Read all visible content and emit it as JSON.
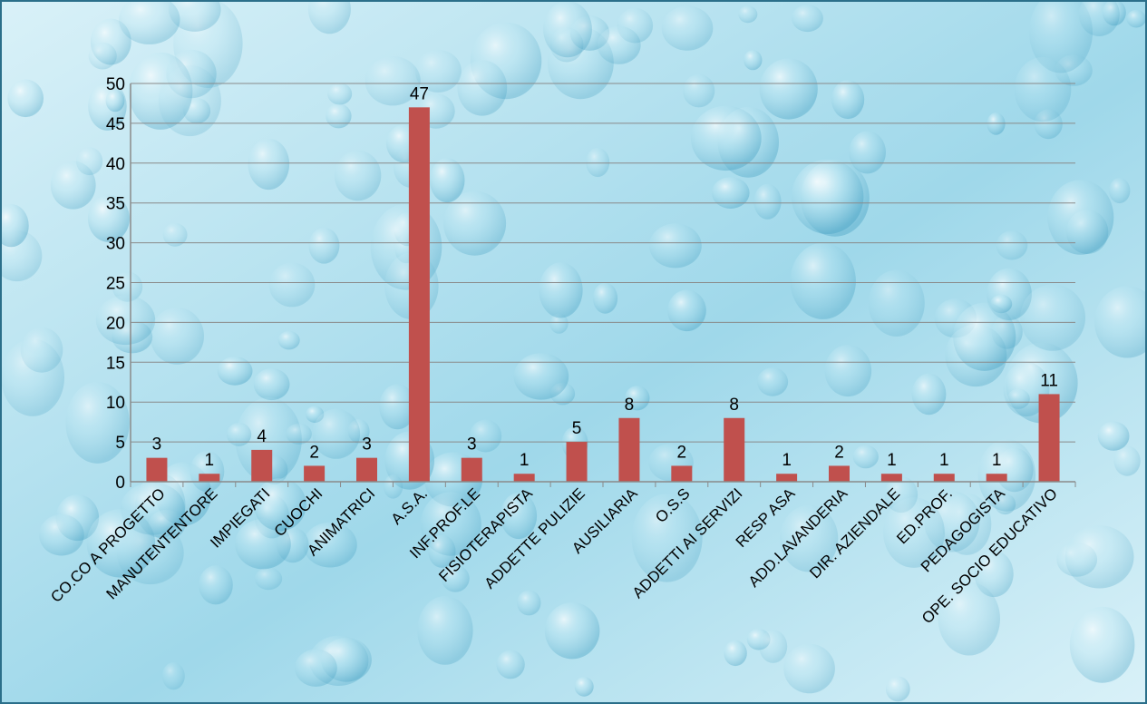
{
  "chart_data": {
    "type": "bar",
    "title": "",
    "xlabel": "",
    "ylabel": "",
    "ylim": [
      0,
      50
    ],
    "yticks": [
      0,
      5,
      10,
      15,
      20,
      25,
      30,
      35,
      40,
      45,
      50
    ],
    "grid": true,
    "legend": "none",
    "data_labels": true,
    "categories": [
      "CO.CO A PROGETTO",
      "MANUTENTENTORE",
      "IMPIEGATI",
      "CUOCHI",
      "ANIMATRICI",
      "A.S.A.",
      "INF.PROF.LE",
      "FISIOTERAPISTA",
      "ADDETTE PULIZIE",
      "AUSILIARIA",
      "O.S.S",
      "ADDETTI AI SERVIZI",
      "RESP ASA",
      "ADD.LAVANDERIA",
      "DIR. AZIENDALE",
      "ED.PROF.",
      "PEDAGOGISTA",
      "OPE. SOCIO EDUCATIVO"
    ],
    "values": [
      3,
      1,
      4,
      2,
      3,
      47,
      3,
      1,
      5,
      8,
      2,
      8,
      1,
      2,
      1,
      1,
      1,
      11
    ],
    "colors": {
      "bar": "#c0504d",
      "grid": "#8a8a8a",
      "axis": "#8a8a8a",
      "background_light": "#d9f1f8",
      "background_mid": "#9fd8ea",
      "background_dark": "#5fb7d3",
      "border": "#2b6f8a"
    }
  }
}
